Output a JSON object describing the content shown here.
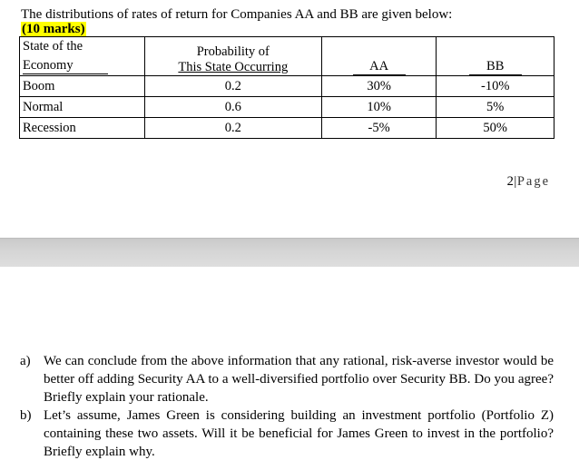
{
  "intro_text": "The distributions of rates of return for Companies AA and BB are given below:",
  "marks": "(10 marks)",
  "table": {
    "headers": {
      "state_line1": "State of the",
      "state_line2": "Economy",
      "prob_line1": "Probability of",
      "prob_line2": "This State Occurring",
      "aa": "AA",
      "bb": "BB"
    },
    "rows": [
      {
        "state": "Boom",
        "prob": "0.2",
        "aa": "30%",
        "bb": "-10%"
      },
      {
        "state": "Normal",
        "prob": "0.6",
        "aa": "10%",
        "bb": "5%"
      },
      {
        "state": "Recession",
        "prob": "0.2",
        "aa": "-5%",
        "bb": "50%"
      }
    ]
  },
  "page_number": {
    "number": "2",
    "sep": "|",
    "label": "Page"
  },
  "questions": [
    {
      "label": "a)",
      "text": "We can conclude from the above information that any rational, risk-averse investor would be better off adding Security AA to a well-diversified portfolio over Security BB. Do you agree? Briefly explain your rationale."
    },
    {
      "label": "b)",
      "text": "Let’s assume, James Green is considering building an investment portfolio (Portfolio Z) containing these two assets. Will it be beneficial for James Green to invest in the portfolio? Briefly explain why."
    }
  ]
}
